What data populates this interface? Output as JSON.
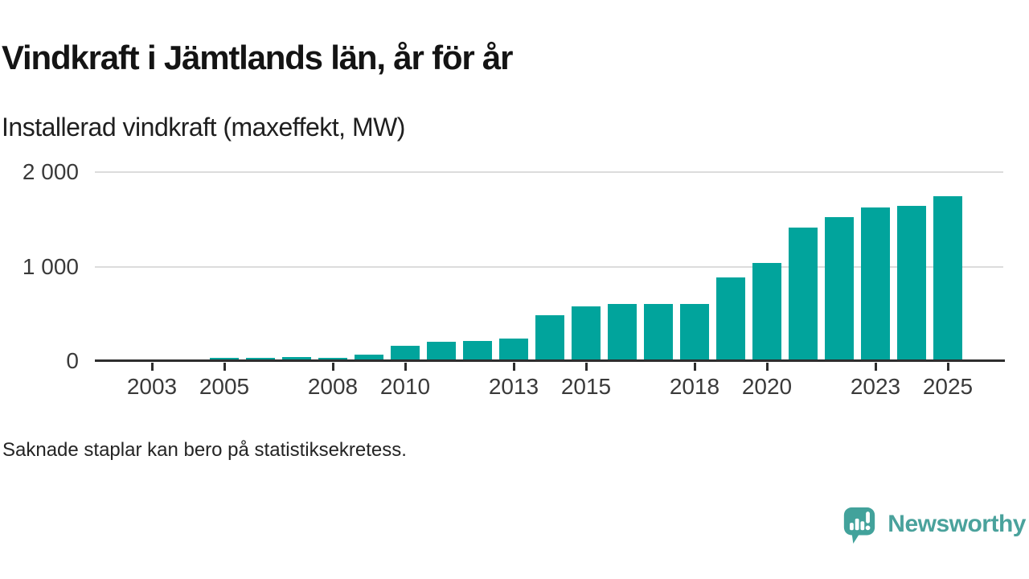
{
  "title": "Vindkraft i Jämtlands län, år för år",
  "subtitle": "Installerad vindkraft (maxeffekt, MW)",
  "footnote": "Saknade staplar kan bero på statistiksekretess.",
  "branding": {
    "logo_text": "Newsworthy",
    "logo_icon": "bar-chart-speech-bubble-icon",
    "logo_color": "#42a29b"
  },
  "colors": {
    "bar": "#01a49c",
    "axis_line": "#2e2e2e",
    "gridline": "#dcdcdc",
    "tick_text": "#3a3a3a"
  },
  "chart_data": {
    "type": "bar",
    "title": "Vindkraft i Jämtlands län, år för år",
    "subtitle": "Installerad vindkraft (maxeffekt, MW)",
    "unit": "MW",
    "note": "Missing bars may be due to statistical secrecy (2003 has no bar)",
    "x": [
      2003,
      2004,
      2005,
      2006,
      2007,
      2008,
      2009,
      2010,
      2011,
      2012,
      2013,
      2014,
      2015,
      2016,
      2017,
      2018,
      2019,
      2020,
      2021,
      2022,
      2023,
      2024,
      2025
    ],
    "values": [
      null,
      18,
      42,
      45,
      52,
      45,
      80,
      170,
      212,
      222,
      247,
      493,
      585,
      610,
      610,
      610,
      890,
      1050,
      1425,
      1530,
      1635,
      1650,
      1750
    ],
    "x_tick_labels": [
      "2003",
      "2005",
      "2008",
      "2010",
      "2013",
      "2015",
      "2018",
      "2020",
      "2023",
      "2025"
    ],
    "y_ticks": [
      {
        "value": 0,
        "label": "0"
      },
      {
        "value": 1000,
        "label": "1 000"
      },
      {
        "value": 2000,
        "label": "2 000"
      }
    ],
    "ylim": [
      0,
      2000
    ],
    "grid": "horizontal",
    "legend": "none",
    "bar_color": "#01a49c"
  }
}
